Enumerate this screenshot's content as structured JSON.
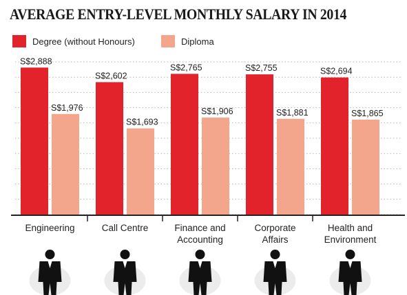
{
  "title": "AVERAGE ENTRY-LEVEL MONTHLY SALARY IN 2014",
  "colors": {
    "degree": "#e2232b",
    "diploma": "#f4a68c",
    "grid": "#b3b3b3"
  },
  "chart_data": {
    "type": "bar",
    "categories": [
      [
        "Engineering"
      ],
      [
        "Call Centre"
      ],
      [
        "Finance and",
        "Accounting"
      ],
      [
        "Corporate",
        "Affairs"
      ],
      [
        "Health and",
        "Environment"
      ]
    ],
    "series": [
      {
        "name": "Degree (without Honours)",
        "values": [
          2888,
          2602,
          2765,
          2755,
          2694
        ],
        "labels": [
          "S$2,888",
          "S$2,602",
          "S$2,765",
          "S$2,755",
          "S$2,694"
        ]
      },
      {
        "name": "Diploma",
        "values": [
          1976,
          1693,
          1906,
          1881,
          1865
        ],
        "labels": [
          "S$1,976",
          "S$1,693",
          "S$1,906",
          "S$1,881",
          "S$1,865"
        ]
      }
    ],
    "ylim": [
      0,
      3000
    ],
    "grid": true,
    "legend": "top-left"
  },
  "icons": [
    "engineer-figure-icon",
    "call-centre-agent-figure-icon",
    "businessman-figure-icon",
    "business-professional-figure-icon",
    "health-inspector-figure-icon"
  ]
}
